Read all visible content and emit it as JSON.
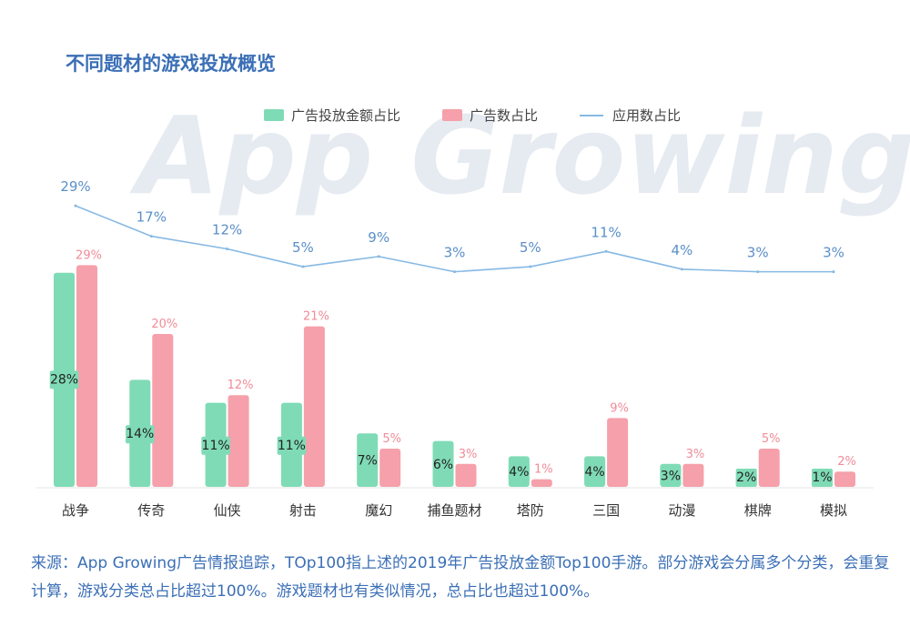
{
  "colors": {
    "amount": "#7fdbb6",
    "ads": "#f5a0aa",
    "apps": "#86b9e3",
    "title": "#3b6fb6",
    "watermark": "#e6ebf1"
  },
  "watermark": "App Growing",
  "chart_data": {
    "type": "bar",
    "title": "不同题材的游戏投放概览",
    "legend_position": "top",
    "categories": [
      "战争",
      "传奇",
      "仙侠",
      "射击",
      "魔幻",
      "捕鱼题材",
      "塔防",
      "三国",
      "动漫",
      "棋牌",
      "模拟"
    ],
    "series": [
      {
        "name": "广告投放金额占比",
        "kind": "bar",
        "values": [
          28,
          14,
          11,
          11,
          7,
          6,
          4,
          4,
          3,
          2,
          1
        ],
        "labels": [
          "28%",
          "14%",
          "11%",
          "11%",
          "7%",
          "6%",
          "4%",
          "4%",
          "3%",
          "2%",
          "1%"
        ]
      },
      {
        "name": "广告数占比",
        "kind": "bar",
        "values": [
          29,
          20,
          12,
          21,
          5,
          3,
          1,
          9,
          3,
          5,
          2
        ],
        "labels": [
          "29%",
          "20%",
          "12%",
          "21%",
          "5%",
          "3%",
          "1%",
          "9%",
          "3%",
          "5%",
          "2%"
        ]
      },
      {
        "name": "应用数占比",
        "kind": "line",
        "values": [
          29,
          17,
          12,
          5,
          9,
          3,
          5,
          11,
          4,
          3,
          3
        ],
        "labels": [
          "29%",
          "17%",
          "12%",
          "5%",
          "9%",
          "3%",
          "5%",
          "11%",
          "4%",
          "3%",
          "3%"
        ]
      }
    ]
  },
  "source_note": "来源：App Growing广告情报追踪，TOp100指上述的2019年广告投放金额Top100手游。部分游戏会分属多个分类，会重复计算，游戏分类总占比超过100%。游戏题材也有类似情况，总占比也超过100%。"
}
